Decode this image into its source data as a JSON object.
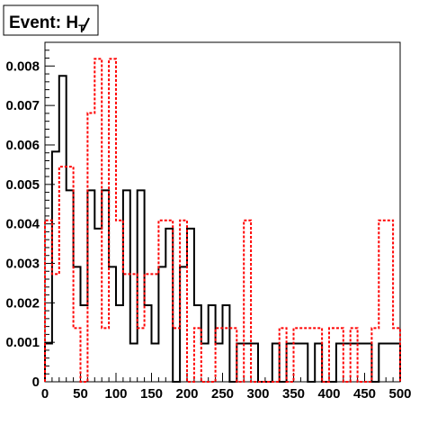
{
  "chart_data": {
    "type": "histogram",
    "title": "Event: H",
    "title_subscript": "T",
    "xlim": [
      0,
      500
    ],
    "ylim": [
      0,
      0.0086
    ],
    "x_tick_labels": [
      "0",
      "50",
      "100",
      "150",
      "200",
      "250",
      "300",
      "350",
      "400",
      "450",
      "500"
    ],
    "y_tick_labels": [
      "0",
      "0.001",
      "0.002",
      "0.003",
      "0.004",
      "0.005",
      "0.006",
      "0.007",
      "0.008"
    ],
    "bin_width": 10,
    "bin_edges": [
      0,
      10,
      20,
      30,
      40,
      50,
      60,
      70,
      80,
      90,
      100,
      110,
      120,
      130,
      140,
      150,
      160,
      170,
      180,
      190,
      200,
      210,
      220,
      230,
      240,
      250,
      260,
      270,
      280,
      290,
      300,
      310,
      320,
      330,
      340,
      350,
      360,
      370,
      380,
      390,
      400,
      410,
      420,
      430,
      440,
      450,
      460,
      470,
      480,
      490,
      500
    ],
    "series": [
      {
        "color": "#000000",
        "style": "solid",
        "values": [
          0.00097,
          0.00583,
          0.00775,
          0.00485,
          0.00291,
          0.00194,
          0.00485,
          0.00388,
          0.00485,
          0.00291,
          0.00194,
          0.00485,
          0.00097,
          0.00485,
          0.00194,
          0.00097,
          0.00291,
          0.00388,
          0.0,
          0.00291,
          0.00388,
          0.00194,
          0.00097,
          0.00194,
          0.00097,
          0.00194,
          0.0,
          0.00097,
          0.00097,
          0.00097,
          0.0,
          0.0,
          0.00097,
          0.0,
          0.00097,
          0.00097,
          0.00097,
          0.0,
          0.00097,
          0.0,
          0.0,
          0.00097,
          0.00097,
          0.00097,
          0.00097,
          0.00097,
          0.0,
          0.00097,
          0.00097,
          0.00097
        ]
      },
      {
        "color": "#ff0000",
        "style": "dotted",
        "values": [
          0.00409,
          0.00273,
          0.00545,
          0.00545,
          0.00136,
          0.0,
          0.00681,
          0.00818,
          0.00136,
          0.00818,
          0.00409,
          0.00273,
          0.00273,
          0.00136,
          0.00273,
          0.00273,
          0.00409,
          0.00409,
          0.00136,
          0.00409,
          0.0,
          0.00136,
          0.0,
          0.0,
          0.00136,
          0.00136,
          0.00136,
          0.0,
          0.00409,
          0.0,
          0.0,
          0.0,
          0.0,
          0.00136,
          0.0,
          0.00136,
          0.00136,
          0.00136,
          0.00136,
          0.0,
          0.00136,
          0.00136,
          0.0,
          0.00136,
          0.0,
          0.0,
          0.00136,
          0.00409,
          0.00409,
          0.00136
        ]
      }
    ]
  }
}
